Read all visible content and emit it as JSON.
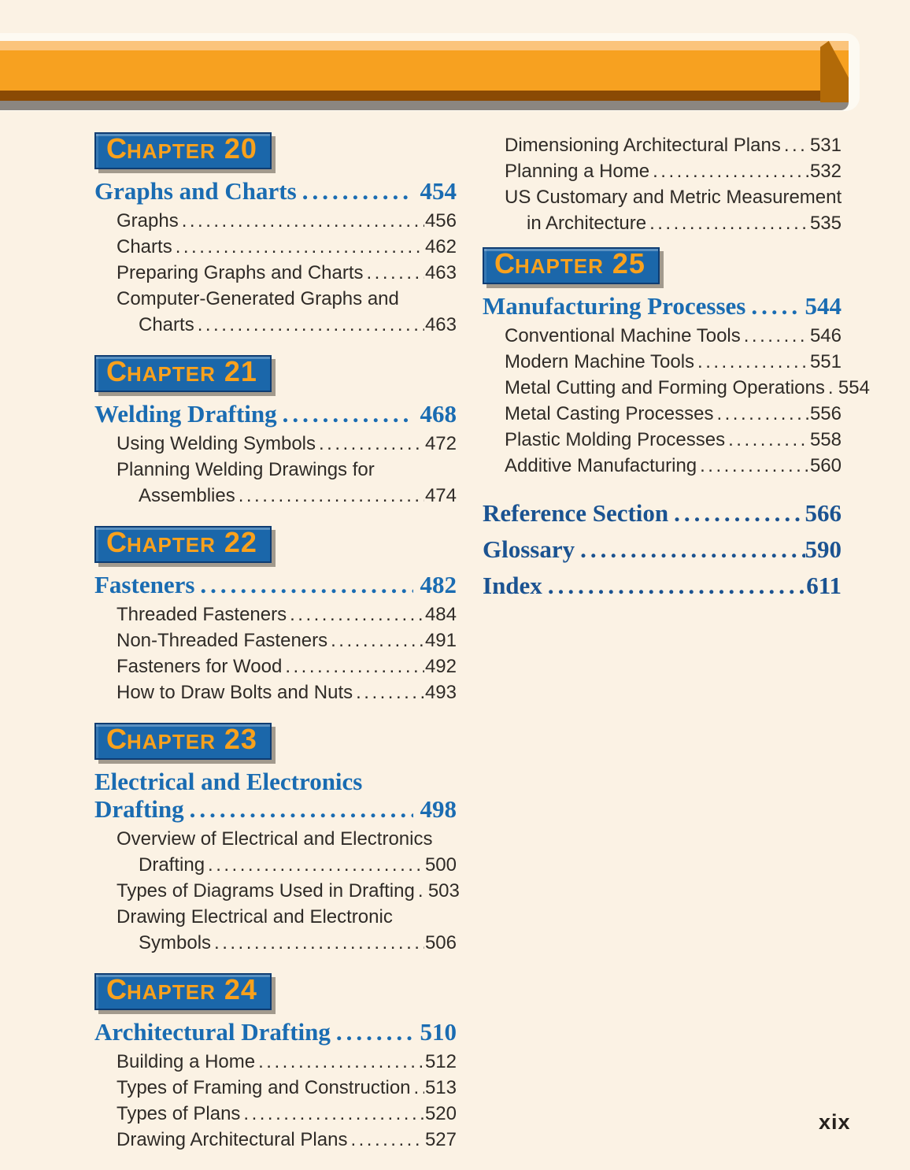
{
  "page": {
    "page_number": "xix"
  },
  "colors": {
    "page_background": "#fbf2e4",
    "banner_orange": "#f7a120",
    "banner_orange_light": "#fbc47c",
    "banner_orange_dark": "#8a4a04",
    "banner_shadow_gray": "#8b8680",
    "badge_blue": "#1b67aa",
    "badge_border_navy": "#0e3c72",
    "badge_text_orange": "#f9a11c",
    "chapter_title_blue": "#1a6cb2",
    "section_title_navy": "#1b5391",
    "entry_text": "#2f2b27"
  },
  "toc": {
    "columns": [
      {
        "blocks": [
          {
            "type": "chapter",
            "label": "Chapter",
            "number": "20",
            "title": "Graphs and Charts",
            "page": "454",
            "entries": [
              {
                "text": "Graphs",
                "page": "456"
              },
              {
                "text": "Charts",
                "page": "462"
              },
              {
                "text": "Preparing Graphs and Charts",
                "page": "463"
              },
              {
                "text": "Computer-Generated Graphs and",
                "wrap": "Charts",
                "page": "463"
              }
            ]
          },
          {
            "type": "chapter",
            "label": "Chapter",
            "number": "21",
            "title": "Welding Drafting",
            "page": "468",
            "entries": [
              {
                "text": "Using Welding Symbols",
                "page": "472"
              },
              {
                "text": "Planning Welding Drawings for",
                "wrap": "Assemblies",
                "page": "474"
              }
            ]
          },
          {
            "type": "chapter",
            "label": "Chapter",
            "number": "22",
            "title": "Fasteners",
            "page": "482",
            "entries": [
              {
                "text": "Threaded Fasteners",
                "page": "484"
              },
              {
                "text": "Non-Threaded Fasteners",
                "page": "491"
              },
              {
                "text": "Fasteners for Wood",
                "page": "492"
              },
              {
                "text": "How to Draw Bolts and Nuts",
                "page": "493"
              }
            ]
          },
          {
            "type": "chapter",
            "label": "Chapter",
            "number": "23",
            "title_pre": "Electrical and Electronics",
            "title": "Drafting",
            "page": "498",
            "entries": [
              {
                "text": "Overview of Electrical and Electronics",
                "wrap": "Drafting",
                "page": "500"
              },
              {
                "text": "Types of Diagrams Used in Drafting",
                "page": "503"
              },
              {
                "text": "Drawing Electrical and Electronic",
                "wrap": "Symbols",
                "page": "506"
              }
            ]
          },
          {
            "type": "chapter",
            "label": "Chapter",
            "number": "24",
            "title": "Architectural Drafting",
            "page": "510",
            "entries": [
              {
                "text": "Building a Home",
                "page": "512"
              },
              {
                "text": "Types of Framing and Construction",
                "page": "513"
              },
              {
                "text": "Types of Plans",
                "page": "520"
              },
              {
                "text": "Drawing Architectural Plans",
                "page": "527"
              }
            ]
          }
        ]
      },
      {
        "blocks": [
          {
            "type": "entries",
            "entries": [
              {
                "text": "Dimensioning Architectural Plans",
                "page": "531"
              },
              {
                "text": "Planning a Home",
                "page": "532"
              },
              {
                "text": "US Customary and Metric Measurement",
                "wrap": "in Architecture",
                "page": "535"
              }
            ]
          },
          {
            "type": "chapter",
            "label": "Chapter",
            "number": "25",
            "title": "Manufacturing Processes",
            "page": "544",
            "entries": [
              {
                "text": "Conventional Machine Tools",
                "page": "546"
              },
              {
                "text": "Modern Machine Tools",
                "page": "551"
              },
              {
                "text": "Metal Cutting and Forming Operations",
                "page": "554"
              },
              {
                "text": "Metal Casting Processes",
                "page": "556"
              },
              {
                "text": "Plastic Molding Processes",
                "page": "558"
              },
              {
                "text": "Additive Manufacturing",
                "page": "560"
              }
            ]
          },
          {
            "type": "section",
            "title": "Reference Section",
            "page": "566"
          },
          {
            "type": "section",
            "title": "Glossary",
            "page": "590"
          },
          {
            "type": "section",
            "title": "Index",
            "page": "611"
          }
        ]
      }
    ]
  }
}
